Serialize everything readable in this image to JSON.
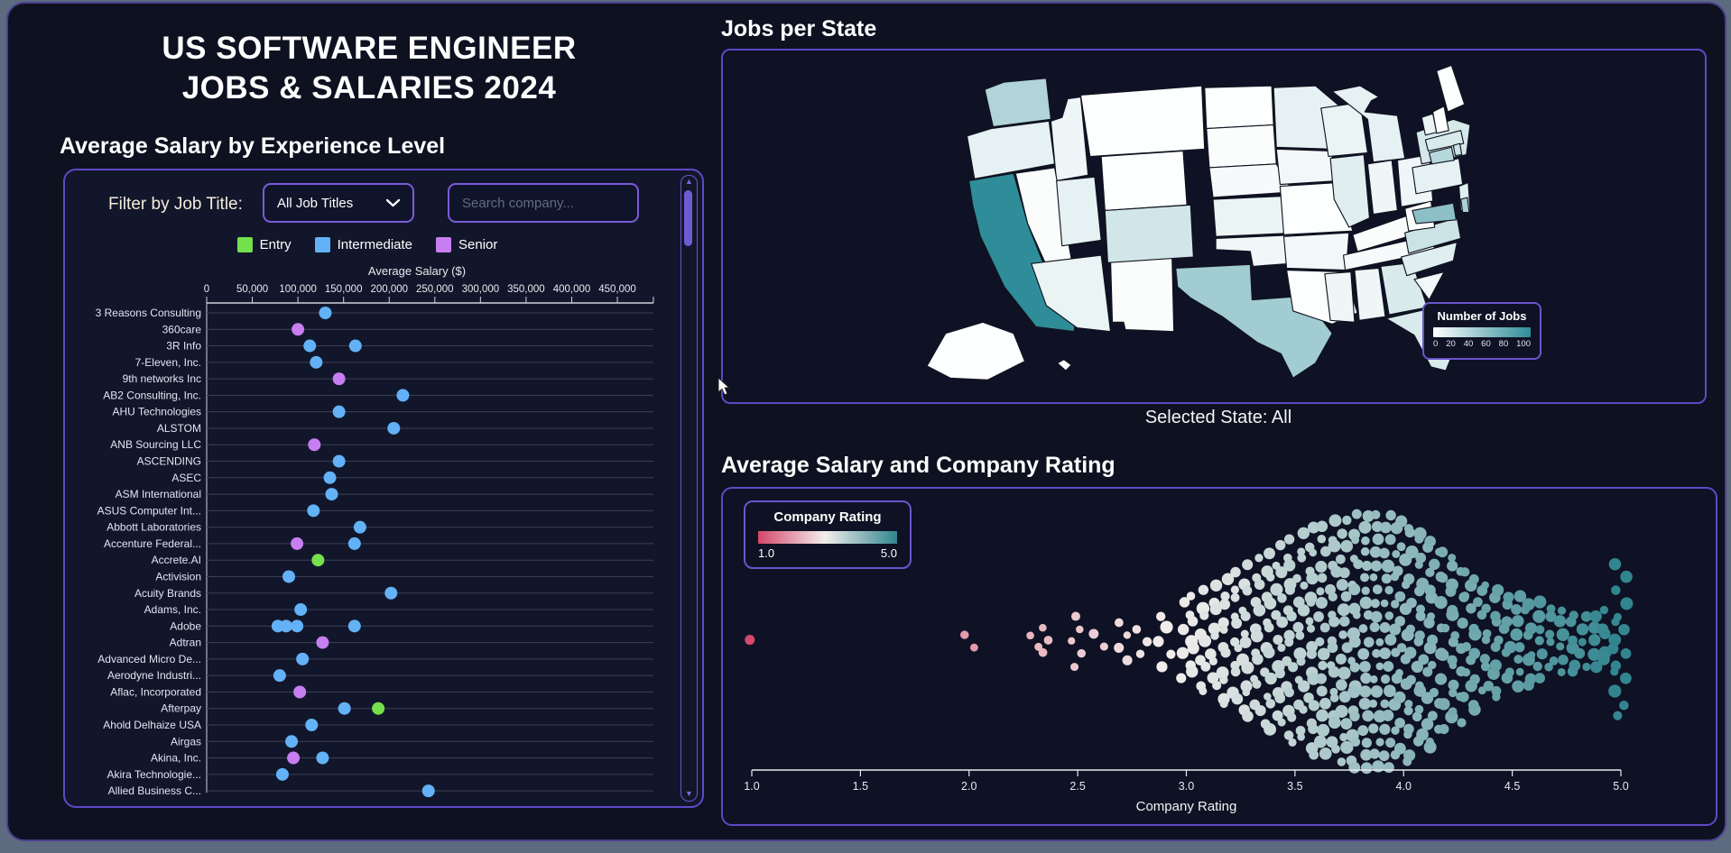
{
  "header": {
    "title_line1": "US SOFTWARE ENGINEER",
    "title_line2": "JOBS & SALARIES 2024"
  },
  "salary_panel": {
    "heading": "Average Salary by Experience Level",
    "filter_label": "Filter by Job Title:",
    "job_title_dropdown_value": "All Job Titles",
    "search_placeholder": "Search company...",
    "legend": [
      {
        "label": "Entry",
        "key": "entry"
      },
      {
        "label": "Intermediate",
        "key": "intermediate"
      },
      {
        "label": "Senior",
        "key": "senior"
      }
    ]
  },
  "map_panel": {
    "heading": "Jobs per State",
    "legend_title": "Number of Jobs",
    "selected_state": "Selected State: All"
  },
  "rating_panel": {
    "heading": "Average Salary and Company Rating",
    "legend_title": "Company Rating",
    "legend_min": "1.0",
    "legend_max": "5.0",
    "xlabel": "Company Rating"
  },
  "colors": {
    "entry": "#74e14c",
    "intermediate": "#63b1f6",
    "senior": "#c77ef0",
    "grid": "#3b4056",
    "map_low": "#ffffff",
    "map_high": "#2e8d98",
    "rating_low": "#d4476a",
    "rating_mid": "#f2eeec",
    "rating_high": "#31858f"
  },
  "chart_data": [
    {
      "type": "scatter",
      "name": "avg-salary-by-experience",
      "xlabel": "Average Salary ($)",
      "xlim": [
        0,
        490000
      ],
      "x_ticks": [
        "0",
        "50,000",
        "100,000",
        "150,000",
        "200,000",
        "250,000",
        "300,000",
        "350,000",
        "400,000",
        "450,000"
      ],
      "legend": [
        "Entry",
        "Intermediate",
        "Senior"
      ],
      "companies": [
        {
          "name": "3 Reasons Consulting",
          "dots": [
            {
              "level": "Intermediate",
              "salary": 130000
            }
          ]
        },
        {
          "name": "360care",
          "dots": [
            {
              "level": "Senior",
              "salary": 100000
            }
          ]
        },
        {
          "name": "3R Info",
          "dots": [
            {
              "level": "Intermediate",
              "salary": 113000
            },
            {
              "level": "Intermediate",
              "salary": 163000
            }
          ]
        },
        {
          "name": "7-Eleven, Inc.",
          "dots": [
            {
              "level": "Intermediate",
              "salary": 120000
            }
          ]
        },
        {
          "name": "9th networks Inc",
          "dots": [
            {
              "level": "Senior",
              "salary": 145000
            }
          ]
        },
        {
          "name": "AB2 Consulting, Inc.",
          "dots": [
            {
              "level": "Intermediate",
              "salary": 215000
            }
          ]
        },
        {
          "name": "AHU Technologies",
          "dots": [
            {
              "level": "Intermediate",
              "salary": 145000
            }
          ]
        },
        {
          "name": "ALSTOM",
          "dots": [
            {
              "level": "Intermediate",
              "salary": 205000
            }
          ]
        },
        {
          "name": "ANB Sourcing LLC",
          "dots": [
            {
              "level": "Senior",
              "salary": 118000
            }
          ]
        },
        {
          "name": "ASCENDING",
          "dots": [
            {
              "level": "Intermediate",
              "salary": 145000
            }
          ]
        },
        {
          "name": "ASEC",
          "dots": [
            {
              "level": "Intermediate",
              "salary": 135000
            }
          ]
        },
        {
          "name": "ASM International",
          "dots": [
            {
              "level": "Intermediate",
              "salary": 137000
            }
          ]
        },
        {
          "name": "ASUS Computer Int...",
          "dots": [
            {
              "level": "Intermediate",
              "salary": 117000
            }
          ]
        },
        {
          "name": "Abbott Laboratories",
          "dots": [
            {
              "level": "Intermediate",
              "salary": 168000
            }
          ]
        },
        {
          "name": "Accenture Federal...",
          "dots": [
            {
              "level": "Senior",
              "salary": 99000
            },
            {
              "level": "Intermediate",
              "salary": 162000
            }
          ]
        },
        {
          "name": "Accrete.AI",
          "dots": [
            {
              "level": "Entry",
              "salary": 122000
            }
          ]
        },
        {
          "name": "Activision",
          "dots": [
            {
              "level": "Intermediate",
              "salary": 90000
            }
          ]
        },
        {
          "name": "Acuity Brands",
          "dots": [
            {
              "level": "Intermediate",
              "salary": 202000
            }
          ]
        },
        {
          "name": "Adams, Inc.",
          "dots": [
            {
              "level": "Intermediate",
              "salary": 103000
            }
          ]
        },
        {
          "name": "Adobe",
          "dots": [
            {
              "level": "Intermediate",
              "salary": 78000
            },
            {
              "level": "Intermediate",
              "salary": 87000
            },
            {
              "level": "Intermediate",
              "salary": 99000
            },
            {
              "level": "Intermediate",
              "salary": 162000
            }
          ]
        },
        {
          "name": "Adtran",
          "dots": [
            {
              "level": "Senior",
              "salary": 127000
            }
          ]
        },
        {
          "name": "Advanced Micro De...",
          "dots": [
            {
              "level": "Intermediate",
              "salary": 105000
            }
          ]
        },
        {
          "name": "Aerodyne Industri...",
          "dots": [
            {
              "level": "Intermediate",
              "salary": 80000
            }
          ]
        },
        {
          "name": "Aflac, Incorporated",
          "dots": [
            {
              "level": "Senior",
              "salary": 102000
            }
          ]
        },
        {
          "name": "Afterpay",
          "dots": [
            {
              "level": "Intermediate",
              "salary": 151000
            },
            {
              "level": "Entry",
              "salary": 188000
            }
          ]
        },
        {
          "name": "Ahold Delhaize USA",
          "dots": [
            {
              "level": "Intermediate",
              "salary": 115000
            }
          ]
        },
        {
          "name": "Airgas",
          "dots": [
            {
              "level": "Intermediate",
              "salary": 93000
            }
          ]
        },
        {
          "name": "Akina, Inc.",
          "dots": [
            {
              "level": "Senior",
              "salary": 95000
            },
            {
              "level": "Intermediate",
              "salary": 127000
            }
          ]
        },
        {
          "name": "Akira Technologie...",
          "dots": [
            {
              "level": "Intermediate",
              "salary": 83000
            }
          ]
        },
        {
          "name": "Allied Business C...",
          "dots": [
            {
              "level": "Intermediate",
              "salary": 243000
            }
          ]
        }
      ]
    },
    {
      "type": "choropleth",
      "name": "jobs-per-state",
      "legend_title": "Number of Jobs",
      "scale_range": [
        0,
        100
      ],
      "scale_ticks": [
        0,
        20,
        40,
        60,
        80,
        100
      ],
      "selected_state": "All",
      "states": [
        {
          "code": "WA",
          "jobs": 38
        },
        {
          "code": "OR",
          "jobs": 12
        },
        {
          "code": "CA",
          "jobs": 100
        },
        {
          "code": "NV",
          "jobs": 2
        },
        {
          "code": "ID",
          "jobs": 8
        },
        {
          "code": "MT",
          "jobs": 1
        },
        {
          "code": "WY",
          "jobs": 1
        },
        {
          "code": "UT",
          "jobs": 12
        },
        {
          "code": "CO",
          "jobs": 22
        },
        {
          "code": "AZ",
          "jobs": 10
        },
        {
          "code": "NM",
          "jobs": 2
        },
        {
          "code": "ND",
          "jobs": 1
        },
        {
          "code": "SD",
          "jobs": 2
        },
        {
          "code": "NE",
          "jobs": 4
        },
        {
          "code": "KS",
          "jobs": 10
        },
        {
          "code": "OK",
          "jobs": 7
        },
        {
          "code": "TX",
          "jobs": 45
        },
        {
          "code": "MN",
          "jobs": 12
        },
        {
          "code": "IA",
          "jobs": 6
        },
        {
          "code": "MO",
          "jobs": 1
        },
        {
          "code": "AR",
          "jobs": 6
        },
        {
          "code": "LA",
          "jobs": 1
        },
        {
          "code": "WI",
          "jobs": 10
        },
        {
          "code": "IL",
          "jobs": 15
        },
        {
          "code": "MI",
          "jobs": 12
        },
        {
          "code": "IN",
          "jobs": 8
        },
        {
          "code": "OH",
          "jobs": 8
        },
        {
          "code": "KY",
          "jobs": 2
        },
        {
          "code": "TN",
          "jobs": 4
        },
        {
          "code": "MS",
          "jobs": 8
        },
        {
          "code": "AL",
          "jobs": 8
        },
        {
          "code": "GA",
          "jobs": 18
        },
        {
          "code": "FL",
          "jobs": 18
        },
        {
          "code": "SC",
          "jobs": 6
        },
        {
          "code": "NC",
          "jobs": 15
        },
        {
          "code": "VA",
          "jobs": 25
        },
        {
          "code": "WV",
          "jobs": 1
        },
        {
          "code": "PA",
          "jobs": 12
        },
        {
          "code": "NY",
          "jobs": 20
        },
        {
          "code": "NJ",
          "jobs": 15
        },
        {
          "code": "MD",
          "jobs": 55
        },
        {
          "code": "DE",
          "jobs": 40
        },
        {
          "code": "ME",
          "jobs": 1
        },
        {
          "code": "VT",
          "jobs": 10
        },
        {
          "code": "NH",
          "jobs": 1
        },
        {
          "code": "MA",
          "jobs": 18
        },
        {
          "code": "CT",
          "jobs": 35
        },
        {
          "code": "RI",
          "jobs": 25
        },
        {
          "code": "AK",
          "jobs": 1
        },
        {
          "code": "HI",
          "jobs": 4
        }
      ]
    },
    {
      "type": "beeswarm",
      "name": "salary-and-company-rating",
      "xlabel": "Company Rating",
      "xlim": [
        1.0,
        5.0
      ],
      "x_ticks": [
        "1.0",
        "1.5",
        "2.0",
        "2.5",
        "3.0",
        "3.5",
        "4.0",
        "4.5",
        "5.0"
      ],
      "color_scale": {
        "min": 1.0,
        "max": 5.0
      },
      "bins": [
        [
          1.0,
          1
        ],
        [
          2.0,
          2
        ],
        [
          2.3,
          2
        ],
        [
          2.35,
          3
        ],
        [
          2.5,
          5
        ],
        [
          2.6,
          2
        ],
        [
          2.7,
          4
        ],
        [
          2.8,
          3
        ],
        [
          2.9,
          5
        ],
        [
          3.0,
          7
        ],
        [
          3.05,
          8
        ],
        [
          3.1,
          9
        ],
        [
          3.15,
          10
        ],
        [
          3.2,
          11
        ],
        [
          3.25,
          12
        ],
        [
          3.3,
          13
        ],
        [
          3.35,
          14
        ],
        [
          3.4,
          15
        ],
        [
          3.45,
          16
        ],
        [
          3.5,
          17
        ],
        [
          3.55,
          18
        ],
        [
          3.6,
          19
        ],
        [
          3.65,
          19
        ],
        [
          3.7,
          20
        ],
        [
          3.75,
          20
        ],
        [
          3.8,
          21
        ],
        [
          3.85,
          21
        ],
        [
          3.9,
          21
        ],
        [
          3.95,
          21
        ],
        [
          4.0,
          20
        ],
        [
          4.05,
          19
        ],
        [
          4.1,
          18
        ],
        [
          4.15,
          17
        ],
        [
          4.2,
          15
        ],
        [
          4.25,
          14
        ],
        [
          4.3,
          12
        ],
        [
          4.35,
          11
        ],
        [
          4.4,
          10
        ],
        [
          4.45,
          9
        ],
        [
          4.5,
          8
        ],
        [
          4.55,
          8
        ],
        [
          4.6,
          7
        ],
        [
          4.65,
          7
        ],
        [
          4.7,
          6
        ],
        [
          4.75,
          6
        ],
        [
          4.8,
          5
        ],
        [
          4.85,
          5
        ],
        [
          4.9,
          5
        ],
        [
          4.95,
          6
        ],
        [
          5.0,
          13
        ]
      ]
    }
  ]
}
